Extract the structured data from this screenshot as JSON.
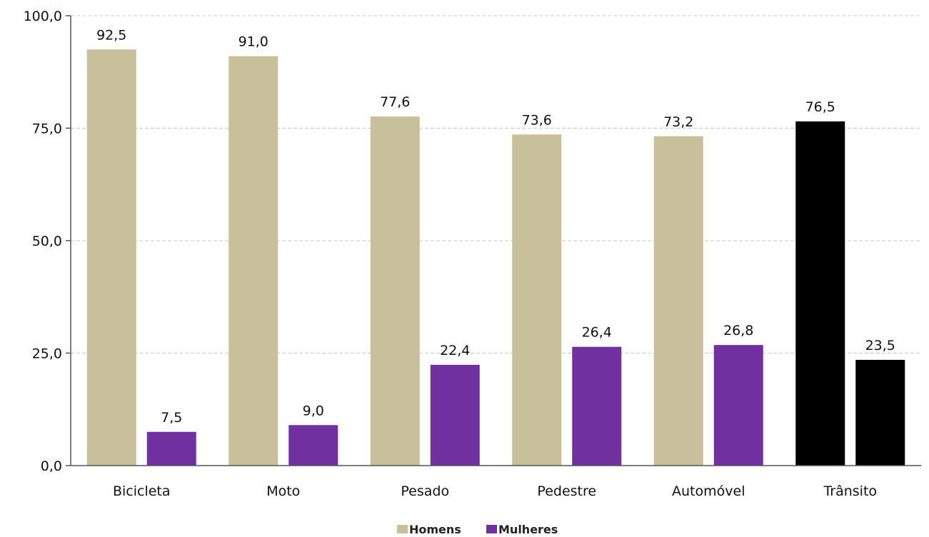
{
  "chart_data": {
    "type": "bar",
    "categories": [
      "Bicicleta",
      "Moto",
      "Pesado",
      "Pedestre",
      "Automóvel",
      "Trânsito"
    ],
    "series": [
      {
        "name": "Homens",
        "values": [
          92.5,
          91.0,
          77.6,
          73.6,
          73.2,
          76.5
        ],
        "labels": [
          "92,5",
          "91,0",
          "77,6",
          "73,6",
          "73,2",
          "76,5"
        ],
        "color": "#c8bf9b"
      },
      {
        "name": "Mulheres",
        "values": [
          7.5,
          9.0,
          22.4,
          26.4,
          26.8,
          23.5
        ],
        "labels": [
          "7,5",
          "9,0",
          "22,4",
          "26,4",
          "26,8",
          "23,5"
        ],
        "color": "#7030a0"
      }
    ],
    "highlight": {
      "category": "Trânsito",
      "color": "#000000"
    },
    "yticks": [
      "0,0",
      "25,0",
      "50,0",
      "75,0",
      "100,0"
    ],
    "ytick_values": [
      0,
      25,
      50,
      75,
      100
    ],
    "ylim": [
      0,
      100
    ],
    "grid": "horizontal dashed",
    "legend": {
      "placement": "bottom-center",
      "items": [
        "Homens",
        "Mulheres"
      ]
    },
    "title": "",
    "xlabel": "",
    "ylabel": ""
  }
}
